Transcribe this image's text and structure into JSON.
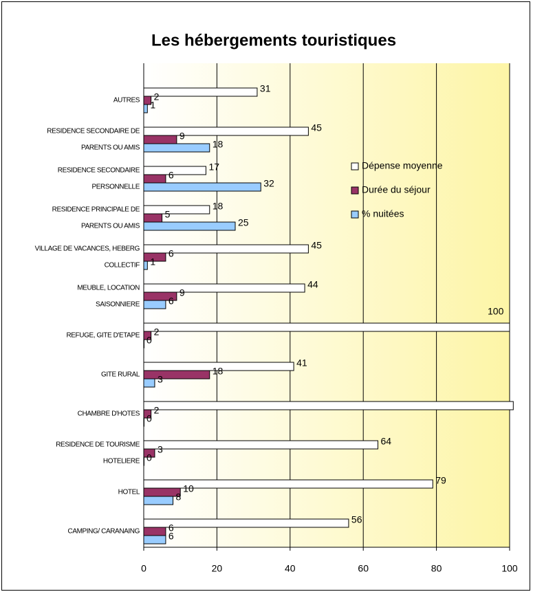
{
  "chart_data": {
    "type": "barh",
    "title": "Les hébergements touristiques",
    "categories": [
      [
        "CAMPING/ CARANAING"
      ],
      [
        "HOTEL"
      ],
      [
        "RESIDENCE DE TOURISME",
        "HOTELIERE"
      ],
      [
        "CHAMBRE D'HOTES"
      ],
      [
        "GITE RURAL"
      ],
      [
        "REFUGE, GITE D'ETAPE"
      ],
      [
        "MEUBLE, LOCATION",
        "SAISONNIERE"
      ],
      [
        "VILLAGE DE VACANCES, HEBERG",
        "COLLECTIF"
      ],
      [
        "RESIDENCE PRINCIPALE DE",
        "PARENTS OU AMIS"
      ],
      [
        "RESIDENCE SECONDAIRE",
        "PERSONNELLE"
      ],
      [
        "RESIDENCE SECONDAIRE DE",
        "PARENTS OU AMIS"
      ],
      [
        "AUTRES"
      ]
    ],
    "series": [
      {
        "name": "Dépense moyenne",
        "color": "#ffffff",
        "values": [
          56,
          79,
          64,
          101,
          41,
          100,
          44,
          45,
          18,
          17,
          45,
          31
        ],
        "value_labels": [
          "56",
          "79",
          "64",
          null,
          "41",
          "100",
          "44",
          "45",
          "18",
          "17",
          "45",
          "31"
        ]
      },
      {
        "name": "Durée du séjour",
        "color": "#993366",
        "values": [
          6,
          10,
          3,
          2,
          18,
          2,
          9,
          6,
          5,
          6,
          9,
          2
        ]
      },
      {
        "name": "% nuitées",
        "color": "#99ccff",
        "values": [
          6,
          8,
          0,
          0,
          3,
          0,
          6,
          1,
          25,
          32,
          18,
          1
        ]
      }
    ],
    "xlim": [
      0,
      100
    ],
    "xticks": [
      0,
      20,
      40,
      60,
      80,
      100
    ],
    "grid": true
  }
}
